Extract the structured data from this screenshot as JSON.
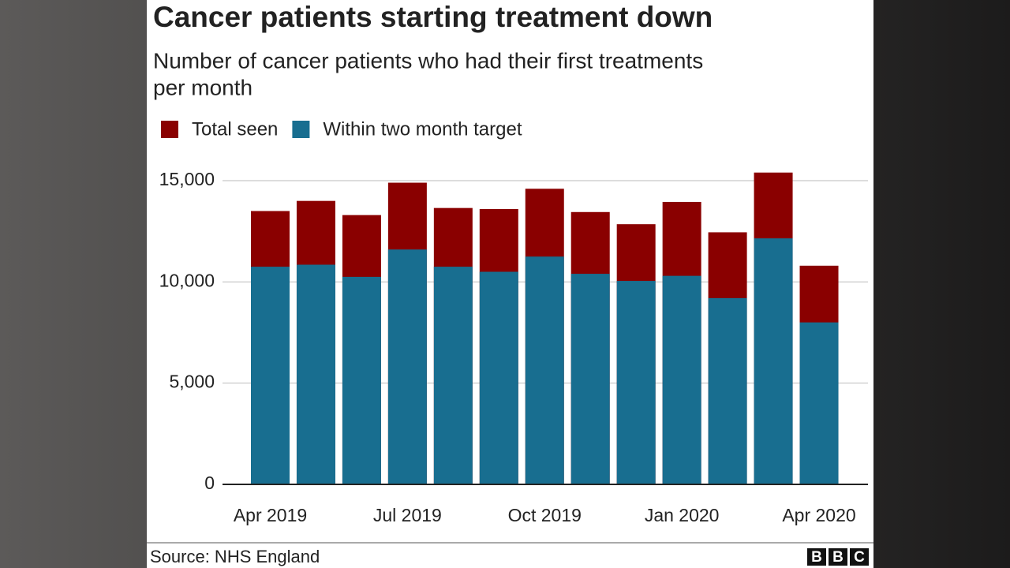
{
  "chart_data": {
    "type": "bar",
    "title": "Cancer patients starting treatment down",
    "subtitle": [
      "Number of cancer patients who had their first treatments",
      "per month"
    ],
    "categories": [
      "Apr 2019",
      null,
      null,
      "Jul 2019",
      null,
      null,
      "Oct 2019",
      null,
      null,
      "Jan 2020",
      null,
      null,
      "Apr 2020"
    ],
    "series": [
      {
        "name": "Total seen",
        "color": "#8a0000",
        "values": [
          13500,
          14000,
          13300,
          14900,
          13650,
          13600,
          14600,
          13450,
          12850,
          13950,
          12450,
          15400,
          10800
        ]
      },
      {
        "name": "Within two month target",
        "color": "#186e90",
        "values": [
          10750,
          10850,
          10250,
          11600,
          10750,
          10500,
          11250,
          10400,
          10050,
          10300,
          9200,
          12150,
          8000
        ]
      }
    ],
    "ylim": [
      0,
      15000
    ],
    "yticks": [
      0,
      {
        "value": 5000,
        "label": "5,000"
      },
      {
        "value": 10000,
        "label": "10,000"
      },
      {
        "value": 15000,
        "label": "15,000"
      }
    ],
    "grid": true,
    "source": "Source: NHS England",
    "logo": [
      "B",
      "B",
      "C"
    ]
  }
}
